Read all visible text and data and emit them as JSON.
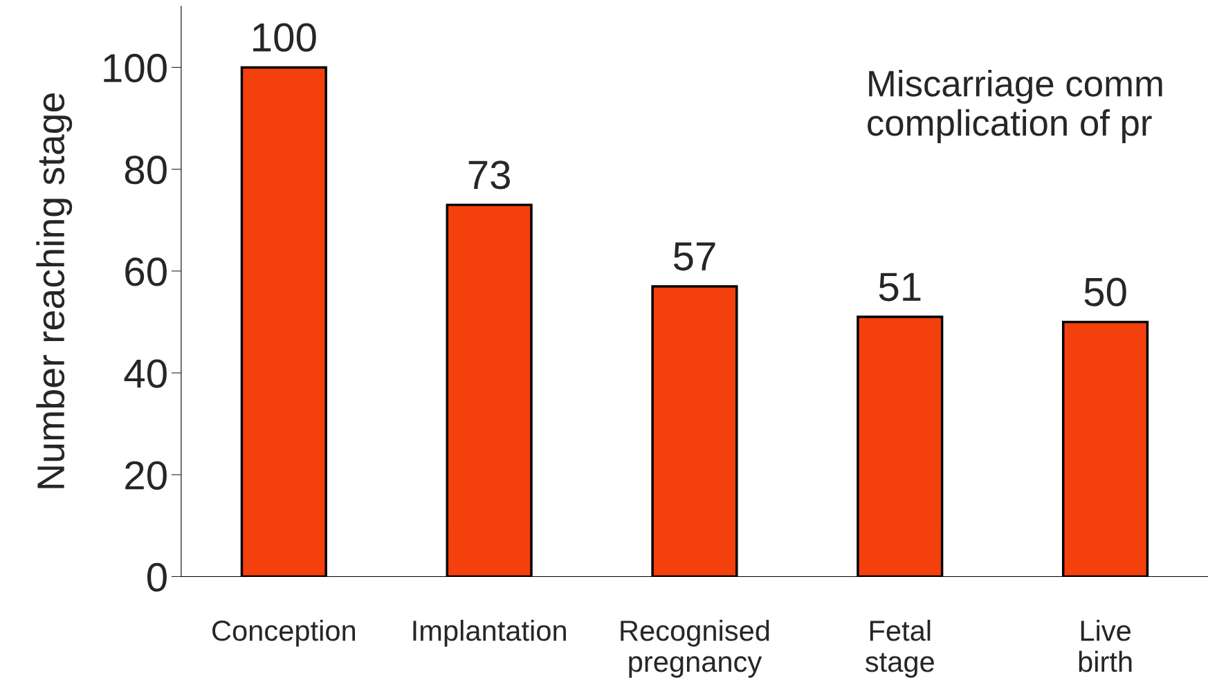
{
  "chart_data": {
    "type": "bar",
    "categories": [
      "Conception",
      "Implantation",
      "Recognised\npregnancy",
      "Fetal\nstage",
      "Live\nbirth"
    ],
    "values": [
      100,
      73,
      57,
      51,
      50
    ],
    "color": "#f4400c",
    "ylabel": "Number reaching stage",
    "ylim": [
      0,
      112
    ],
    "yticks": [
      0,
      20,
      40,
      60,
      80,
      100
    ],
    "data_labels": true,
    "grid": false,
    "legend": false,
    "annotations": [
      "Miscarriage comm\ncomplication of pr"
    ]
  }
}
